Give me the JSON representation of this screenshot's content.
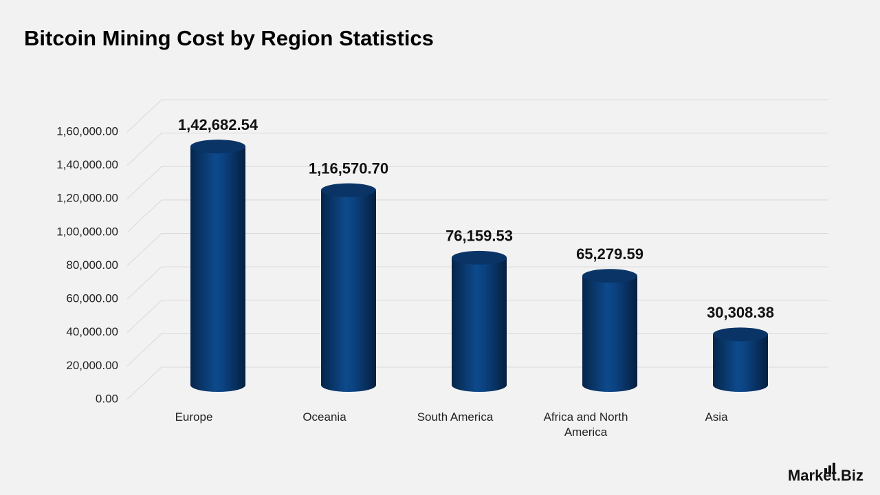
{
  "chart_data": {
    "type": "bar",
    "title": "Bitcoin Mining Cost by Region Statistics",
    "categories": [
      "Europe",
      "Oceania",
      "South America",
      "Africa and North America",
      "Asia"
    ],
    "values": [
      142682.54,
      116570.7,
      76159.53,
      65279.59,
      30308.38
    ],
    "value_labels": [
      "1,42,682.54",
      "1,16,570.70",
      "76,159.53",
      "65,279.59",
      "30,308.38"
    ],
    "color": "#0b3f78",
    "ylim": [
      0,
      160000
    ],
    "yticks": [
      {
        "value": 0,
        "label": "0.00"
      },
      {
        "value": 20000,
        "label": "20,000.00"
      },
      {
        "value": 40000,
        "label": "40,000.00"
      },
      {
        "value": 60000,
        "label": "60,000.00"
      },
      {
        "value": 80000,
        "label": "80,000.00"
      },
      {
        "value": 100000,
        "label": "1,00,000.00"
      },
      {
        "value": 120000,
        "label": "1,20,000.00"
      },
      {
        "value": 140000,
        "label": "1,40,000.00"
      },
      {
        "value": 160000,
        "label": "1,60,000.00"
      }
    ],
    "grid": true
  },
  "logo": "Market.Biz"
}
